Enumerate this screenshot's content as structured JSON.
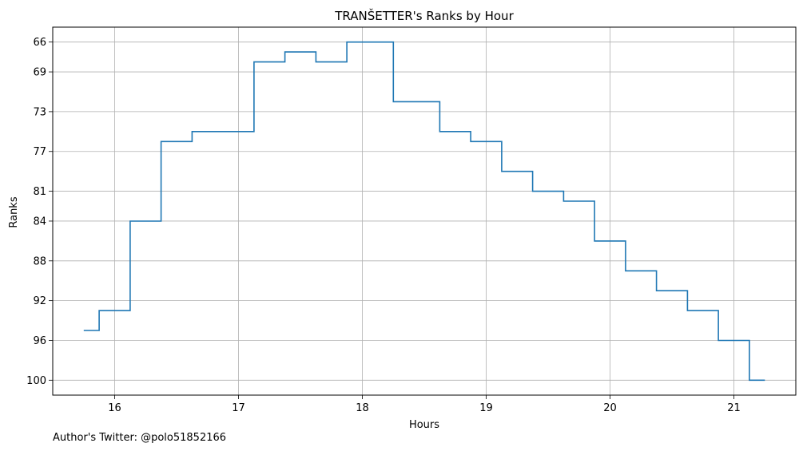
{
  "chart_data": {
    "type": "line",
    "style": "step",
    "title": "TRANŠETTER's Ranks by Hour",
    "xlabel": "Hours",
    "ylabel": "Ranks",
    "xlim": [
      15.5,
      21.5
    ],
    "ylim": [
      101.5,
      64.5
    ],
    "y_inverted": true,
    "grid": true,
    "xticks": [
      16,
      17,
      18,
      19,
      20,
      21
    ],
    "yticks": [
      66,
      69,
      73,
      77,
      81,
      84,
      88,
      92,
      96,
      100
    ],
    "series": [
      {
        "color": "#1f77b4",
        "x": [
          15.75,
          15.875,
          16.125,
          16.375,
          16.625,
          16.875,
          17.125,
          17.375,
          17.625,
          17.875,
          18.25,
          18.625,
          18.875,
          19.125,
          19.375,
          19.625,
          19.875,
          20.125,
          20.375,
          20.625,
          20.875,
          21.125,
          21.25
        ],
        "y": [
          95,
          93,
          84,
          76,
          75,
          75,
          68,
          67,
          68,
          66,
          72,
          75,
          76,
          79,
          81,
          82,
          86,
          89,
          91,
          93,
          96,
          100,
          100
        ]
      }
    ]
  },
  "footer": {
    "note": "Author's Twitter: @polo51852166"
  }
}
